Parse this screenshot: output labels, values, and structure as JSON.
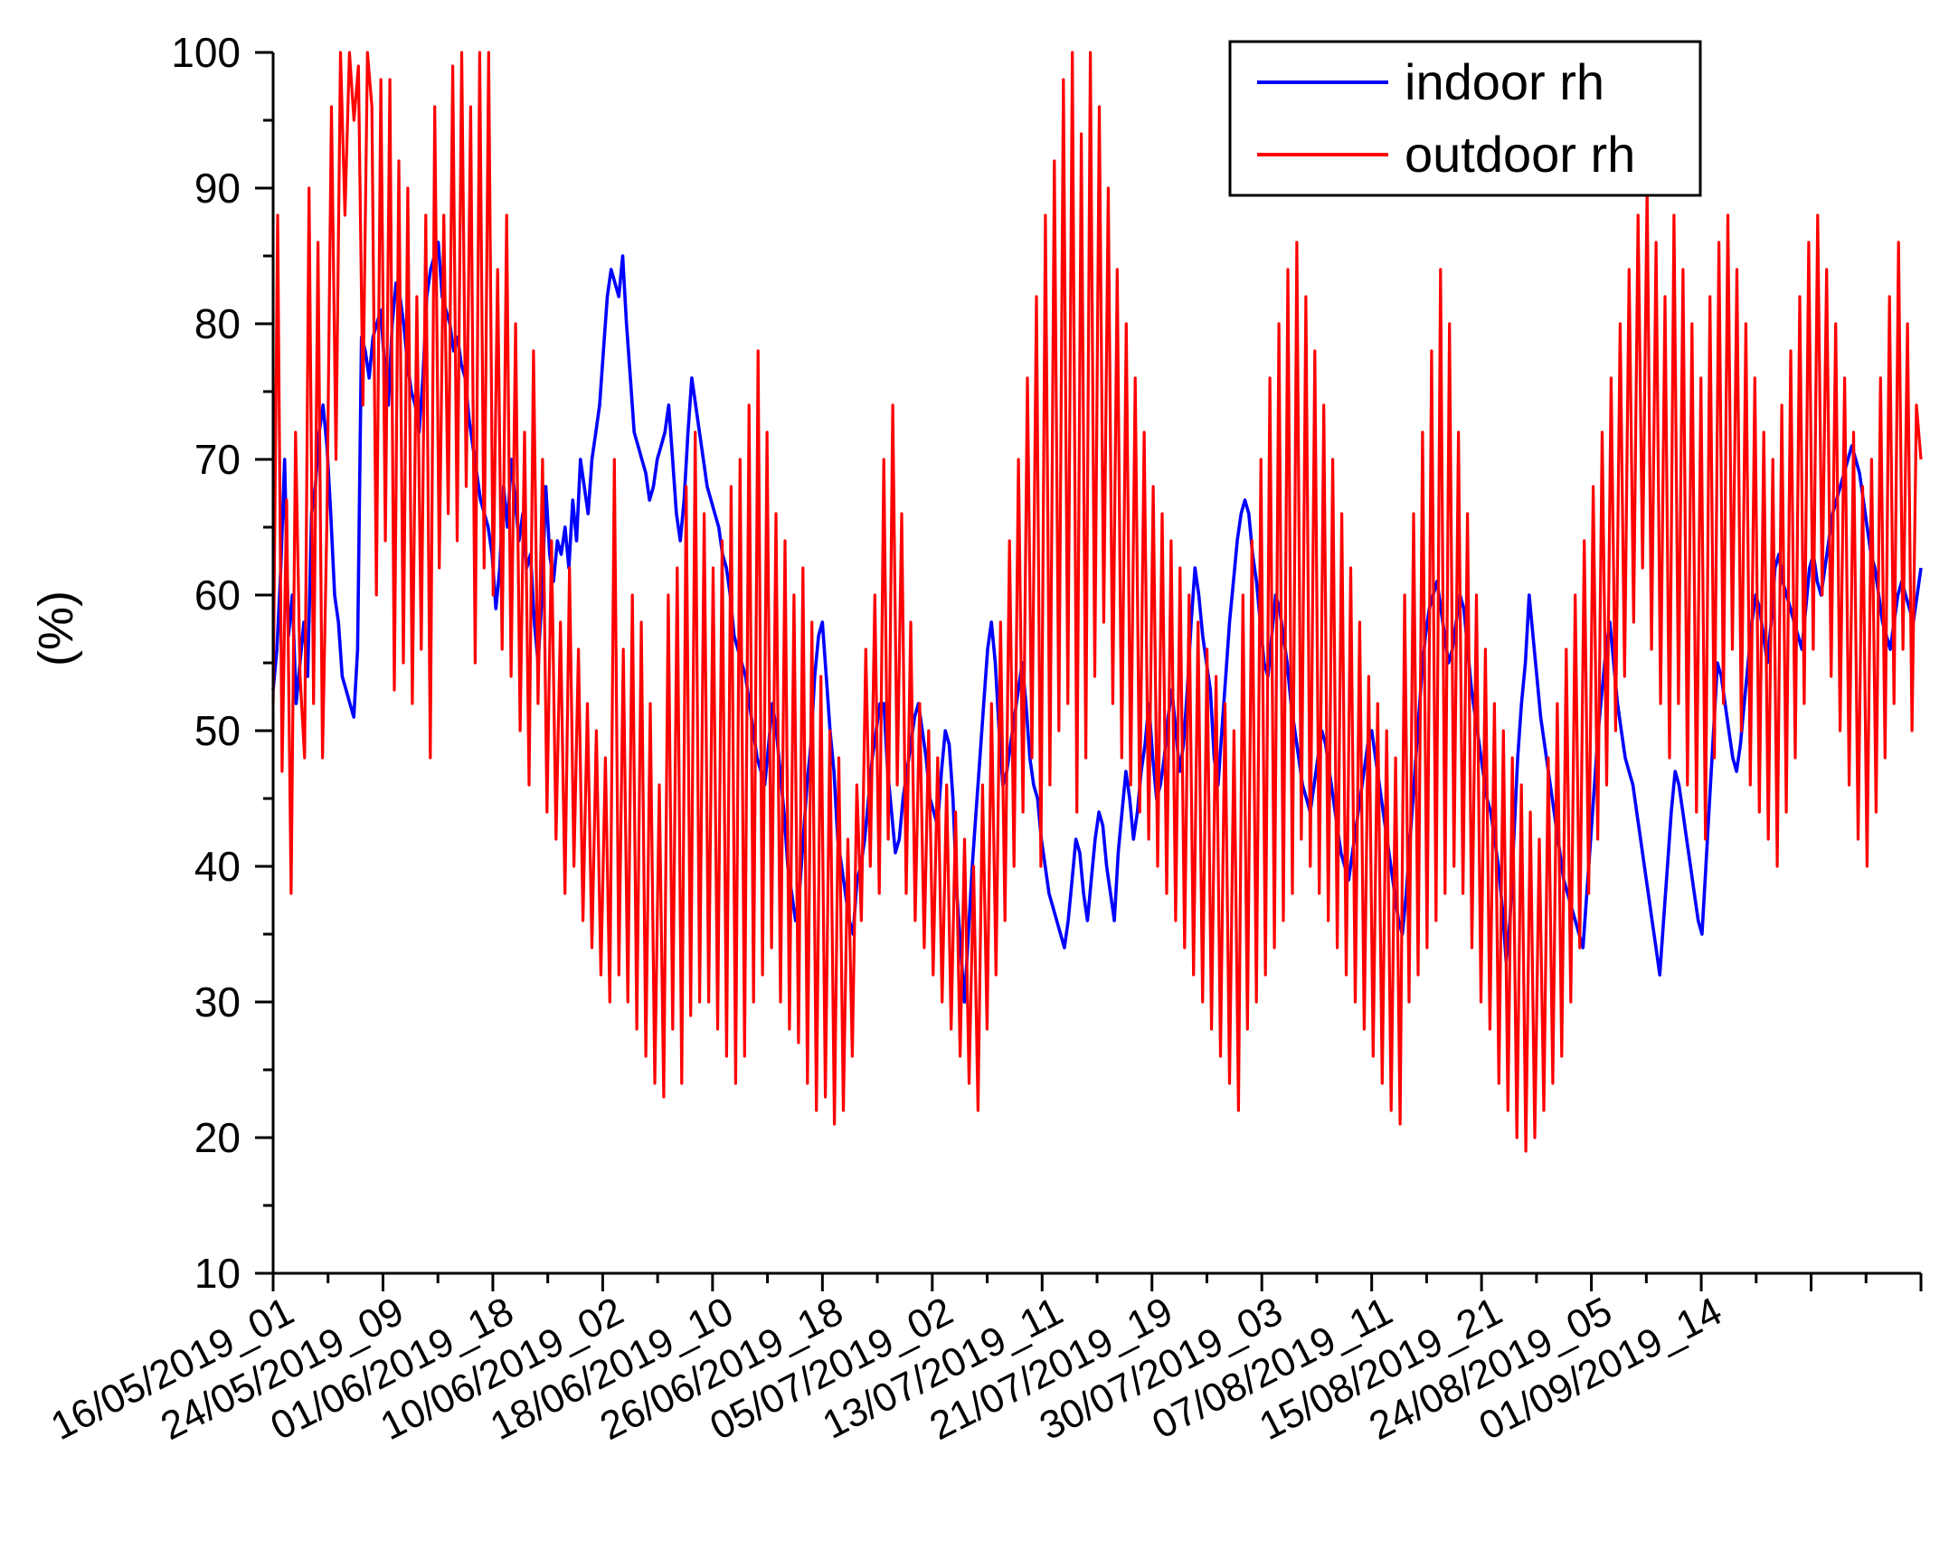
{
  "chart_data": {
    "type": "line",
    "title": "",
    "xlabel": "",
    "ylabel": "(%)",
    "ylim": [
      10,
      100
    ],
    "y_ticks": [
      10,
      20,
      30,
      40,
      50,
      60,
      70,
      80,
      90,
      100
    ],
    "grid": false,
    "legend_position": "top-right",
    "x_tick_labels": [
      "16/05/2019_01",
      "24/05/2019_09",
      "01/06/2019_18",
      "10/06/2019_02",
      "18/06/2019_10",
      "26/06/2019_18",
      "05/07/2019_02",
      "13/07/2019_11",
      "21/07/2019_19",
      "30/07/2019_03",
      "07/08/2019_11",
      "15/08/2019_21",
      "24/08/2019_05",
      "01/09/2019_14"
    ],
    "series": [
      {
        "name": "indoor rh",
        "color": "#0000ff",
        "values": [
          53,
          56,
          62,
          70,
          57,
          60,
          52,
          55,
          58,
          54,
          66,
          68,
          72,
          74,
          71,
          66,
          60,
          58,
          54,
          53,
          52,
          51,
          56,
          79,
          78,
          76,
          79,
          80,
          81,
          77,
          74,
          80,
          83,
          82,
          80,
          77,
          75,
          74,
          72,
          76,
          82,
          84,
          85,
          86,
          82,
          81,
          80,
          78,
          79,
          77,
          76,
          73,
          71,
          69,
          67,
          66,
          65,
          63,
          59,
          62,
          68,
          65,
          70,
          67,
          64,
          66,
          62,
          63,
          58,
          55,
          60,
          68,
          63,
          61,
          64,
          63,
          65,
          62,
          67,
          64,
          70,
          68,
          66,
          70,
          72,
          74,
          78,
          82,
          84,
          83,
          82,
          85,
          80,
          76,
          72,
          71,
          70,
          69,
          67,
          68,
          70,
          71,
          72,
          74,
          70,
          66,
          64,
          67,
          72,
          76,
          74,
          72,
          70,
          68,
          67,
          66,
          65,
          63,
          62,
          60,
          57,
          56,
          55,
          54,
          52,
          50,
          48,
          47,
          46,
          49,
          52,
          50,
          47,
          44,
          40,
          38,
          36,
          38,
          42,
          46,
          49,
          54,
          57,
          58,
          54,
          50,
          47,
          42,
          40,
          38,
          36,
          35,
          39,
          40,
          42,
          45,
          48,
          50,
          52,
          52,
          47,
          44,
          41,
          42,
          45,
          47,
          49,
          51,
          52,
          50,
          48,
          45,
          44,
          43,
          47,
          50,
          49,
          45,
          38,
          34,
          30,
          35,
          40,
          44,
          48,
          52,
          56,
          58,
          55,
          50,
          46,
          47,
          49,
          51,
          53,
          55,
          52,
          48,
          46,
          45,
          42,
          40,
          38,
          37,
          36,
          35,
          34,
          36,
          39,
          42,
          41,
          38,
          36,
          39,
          42,
          44,
          43,
          40,
          38,
          36,
          41,
          44,
          47,
          45,
          42,
          44,
          47,
          49,
          52,
          48,
          45,
          46,
          48,
          51,
          53,
          50,
          47,
          49,
          53,
          58,
          62,
          60,
          57,
          55,
          53,
          48,
          46,
          50,
          54,
          58,
          61,
          64,
          66,
          67,
          66,
          63,
          61,
          58,
          55,
          54,
          57,
          60,
          59,
          57,
          55,
          52,
          50,
          48,
          46,
          45,
          44,
          46,
          48,
          50,
          49,
          47,
          45,
          43,
          41,
          40,
          39,
          41,
          43,
          45,
          47,
          49,
          50,
          48,
          46,
          44,
          42,
          40,
          38,
          36,
          35,
          38,
          42,
          46,
          50,
          54,
          57,
          59,
          60,
          61,
          59,
          57,
          55,
          56,
          58,
          60,
          59,
          56,
          53,
          51,
          49,
          47,
          45,
          44,
          42,
          40,
          37,
          33,
          36,
          42,
          48,
          52,
          55,
          60,
          57,
          54,
          51,
          49,
          47,
          45,
          43,
          41,
          39,
          38,
          37,
          36,
          35,
          34,
          38,
          42,
          46,
          50,
          53,
          56,
          58,
          55,
          52,
          50,
          48,
          47,
          46,
          44,
          42,
          40,
          38,
          36,
          34,
          32,
          36,
          40,
          44,
          47,
          46,
          44,
          42,
          40,
          38,
          36,
          35,
          40,
          45,
          50,
          55,
          54,
          52,
          50,
          48,
          47,
          49,
          52,
          55,
          58,
          60,
          59,
          57,
          55,
          58,
          62,
          63,
          61,
          60,
          59,
          58,
          57,
          56,
          59,
          62,
          63,
          61,
          60,
          62,
          64,
          66,
          67,
          68,
          69,
          70,
          71,
          70,
          69,
          67,
          65,
          63,
          62,
          60,
          58,
          57,
          56,
          58,
          60,
          61,
          60,
          59,
          58,
          60,
          62
        ]
      },
      {
        "name": "outdoor rh",
        "color": "#ff0000",
        "values": [
          52,
          88,
          47,
          67,
          38,
          72,
          54,
          48,
          90,
          52,
          86,
          48,
          66,
          96,
          70,
          100,
          88,
          100,
          95,
          99,
          74,
          100,
          96,
          60,
          98,
          64,
          98,
          53,
          92,
          55,
          90,
          52,
          82,
          56,
          88,
          48,
          96,
          62,
          88,
          66,
          99,
          64,
          100,
          68,
          96,
          55,
          100,
          62,
          100,
          60,
          84,
          56,
          88,
          54,
          80,
          50,
          72,
          46,
          78,
          52,
          70,
          44,
          64,
          42,
          58,
          38,
          62,
          40,
          56,
          36,
          52,
          34,
          50,
          32,
          48,
          30,
          70,
          32,
          56,
          30,
          60,
          28,
          58,
          26,
          52,
          24,
          46,
          23,
          60,
          28,
          62,
          24,
          68,
          29,
          72,
          30,
          66,
          30,
          62,
          28,
          64,
          26,
          68,
          24,
          70,
          26,
          74,
          30,
          78,
          32,
          72,
          34,
          66,
          30,
          64,
          28,
          60,
          27,
          62,
          24,
          58,
          22,
          54,
          23,
          50,
          21,
          48,
          22,
          42,
          26,
          46,
          36,
          56,
          40,
          60,
          38,
          70,
          42,
          74,
          46,
          66,
          38,
          58,
          36,
          52,
          34,
          50,
          32,
          48,
          30,
          46,
          28,
          44,
          26,
          42,
          24,
          40,
          22,
          46,
          28,
          52,
          32,
          58,
          36,
          64,
          40,
          70,
          44,
          76,
          48,
          82,
          40,
          88,
          46,
          92,
          50,
          98,
          52,
          100,
          44,
          94,
          48,
          100,
          54,
          96,
          58,
          90,
          52,
          84,
          48,
          80,
          46,
          76,
          44,
          72,
          42,
          68,
          40,
          66,
          38,
          64,
          36,
          62,
          34,
          60,
          32,
          58,
          30,
          56,
          28,
          54,
          26,
          52,
          24,
          50,
          22,
          60,
          28,
          64,
          30,
          70,
          32,
          76,
          34,
          80,
          36,
          84,
          38,
          86,
          42,
          82,
          40,
          78,
          38,
          74,
          36,
          70,
          34,
          66,
          32,
          62,
          30,
          58,
          28,
          54,
          26,
          52,
          24,
          50,
          22,
          48,
          21,
          60,
          30,
          66,
          32,
          72,
          34,
          78,
          36,
          84,
          38,
          80,
          40,
          72,
          38,
          66,
          34,
          60,
          30,
          56,
          28,
          52,
          24,
          50,
          22,
          48,
          20,
          46,
          19,
          44,
          20,
          42,
          22,
          48,
          24,
          52,
          26,
          56,
          30,
          60,
          34,
          64,
          38,
          68,
          42,
          72,
          46,
          76,
          50,
          80,
          54,
          84,
          58,
          88,
          62,
          90,
          56,
          86,
          52,
          82,
          48,
          88,
          52,
          84,
          46,
          80,
          44,
          76,
          42,
          82,
          48,
          86,
          52,
          88,
          56,
          84,
          50,
          80,
          46,
          76,
          44,
          72,
          42,
          70,
          40,
          74,
          44,
          78,
          48,
          82,
          52,
          86,
          56,
          88,
          60,
          84,
          54,
          80,
          50,
          76,
          46,
          72,
          42,
          68,
          40,
          70,
          44,
          76,
          48,
          82,
          52,
          86,
          56,
          80,
          50,
          74,
          70
        ]
      }
    ]
  }
}
